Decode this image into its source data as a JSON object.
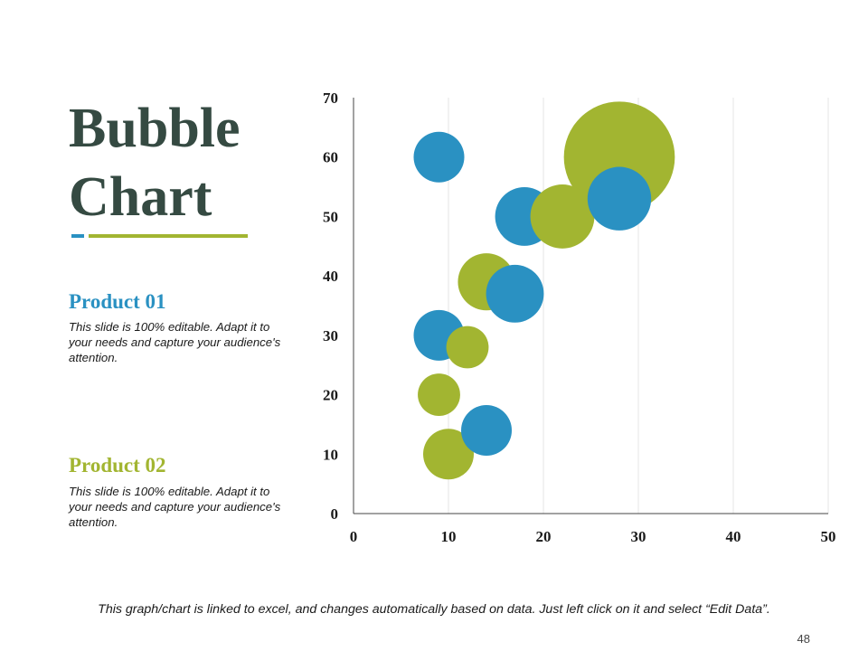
{
  "title": {
    "line1": "Bubble",
    "line2": "Chart"
  },
  "colors": {
    "title": "#354a42",
    "product01": "#2a91c2",
    "product02": "#a2b531",
    "grid": "#e6e6e6",
    "axis": "#444444"
  },
  "products": [
    {
      "heading": "Product 01",
      "description": "This slide is 100% editable. Adapt it to your needs and capture your audience's attention."
    },
    {
      "heading": "Product 02",
      "description": "This slide is 100% editable. Adapt it to your needs and capture your audience's attention."
    }
  ],
  "chart_data": {
    "type": "bubble",
    "title": "",
    "xlabel": "",
    "ylabel": "",
    "xlim": [
      0,
      50
    ],
    "ylim": [
      0,
      70
    ],
    "x_ticks": [
      0,
      10,
      20,
      30,
      40,
      50
    ],
    "y_ticks": [
      0,
      10,
      20,
      30,
      40,
      50,
      60,
      70
    ],
    "vertical_grid": true,
    "legend": "none",
    "series": [
      {
        "name": "Product 01",
        "color": "#2a91c2",
        "points": [
          {
            "x": 9,
            "y": 60,
            "size": 1.0
          },
          {
            "x": 18,
            "y": 50,
            "size": 1.34
          },
          {
            "x": 28,
            "y": 53,
            "size": 1.58
          },
          {
            "x": 17,
            "y": 37,
            "size": 1.3
          },
          {
            "x": 9,
            "y": 30,
            "size": 1.0
          },
          {
            "x": 14,
            "y": 14,
            "size": 1.0
          }
        ]
      },
      {
        "name": "Product 02",
        "color": "#a2b531",
        "points": [
          {
            "x": 28,
            "y": 60,
            "size": 4.8
          },
          {
            "x": 22,
            "y": 50,
            "size": 1.6
          },
          {
            "x": 14,
            "y": 39,
            "size": 1.27
          },
          {
            "x": 12,
            "y": 28,
            "size": 0.7
          },
          {
            "x": 9,
            "y": 20,
            "size": 0.7
          },
          {
            "x": 10,
            "y": 10,
            "size": 1.0
          }
        ]
      }
    ],
    "draw_order": [
      [
        "Product 02",
        0
      ],
      [
        "Product 01",
        0
      ],
      [
        "Product 01",
        1
      ],
      [
        "Product 02",
        1
      ],
      [
        "Product 01",
        2
      ],
      [
        "Product 02",
        2
      ],
      [
        "Product 01",
        3
      ],
      [
        "Product 01",
        4
      ],
      [
        "Product 02",
        3
      ],
      [
        "Product 02",
        4
      ],
      [
        "Product 02",
        5
      ],
      [
        "Product 01",
        5
      ]
    ]
  },
  "footer": {
    "note": "This graph/chart is linked to excel, and changes automatically based on data. Just left click on it and select “Edit Data”."
  },
  "page_number": "48"
}
